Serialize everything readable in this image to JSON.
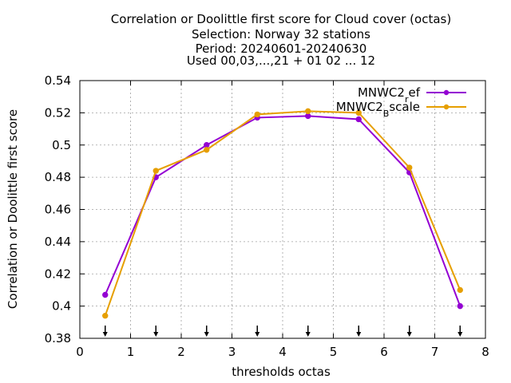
{
  "chart_data": {
    "type": "line",
    "title_lines": [
      "Correlation or Doolittle first score  for Cloud cover (octas)",
      "Selection: Norway     32 stations",
      "Period: 20240601-20240630",
      "Used 00,03,...,21 + 01 02 ... 12"
    ],
    "xlabel": "thresholds octas",
    "ylabel": "Correlation or Doolittle first score",
    "xlim": [
      0,
      8
    ],
    "ylim": [
      0.38,
      0.54
    ],
    "x_ticks": [
      "0",
      "1",
      "2",
      "3",
      "4",
      "5",
      "6",
      "7",
      "8"
    ],
    "y_ticks": [
      "0.38",
      "0.4",
      "0.42",
      "0.44",
      "0.46",
      "0.48",
      "0.5",
      "0.52",
      "0.54"
    ],
    "grid": true,
    "legend_position": "top-right",
    "threshold_markers": [
      0.5,
      1.5,
      2.5,
      3.5,
      4.5,
      5.5,
      6.5,
      7.5
    ],
    "series": [
      {
        "legend_base": "MNWC2",
        "legend_sub": "r",
        "legend_rest": "ef",
        "color": "#9400d3",
        "x": [
          0.5,
          1.5,
          2.5,
          3.5,
          4.5,
          5.5,
          6.5,
          7.5
        ],
        "values": [
          0.407,
          0.48,
          0.5,
          0.517,
          0.518,
          0.516,
          0.483,
          0.4
        ]
      },
      {
        "legend_base": "MNWC2",
        "legend_sub": "B",
        "legend_rest": "scale",
        "color": "#e69f00",
        "x": [
          0.5,
          1.5,
          2.5,
          3.5,
          4.5,
          5.5,
          6.5,
          7.5
        ],
        "values": [
          0.394,
          0.484,
          0.497,
          0.519,
          0.521,
          0.52,
          0.486,
          0.41
        ]
      }
    ]
  }
}
